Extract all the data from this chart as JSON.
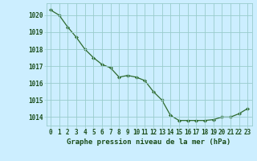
{
  "x": [
    0,
    1,
    2,
    3,
    4,
    5,
    6,
    7,
    8,
    9,
    10,
    11,
    12,
    13,
    14,
    15,
    16,
    17,
    18,
    19,
    20,
    21,
    22,
    23
  ],
  "y": [
    1020.3,
    1020.0,
    1019.3,
    1018.7,
    1018.0,
    1017.5,
    1017.1,
    1016.9,
    1016.35,
    1016.45,
    1016.35,
    1016.15,
    1015.5,
    1015.0,
    1014.1,
    1013.8,
    1013.8,
    1013.8,
    1013.8,
    1013.85,
    1014.0,
    1014.0,
    1014.2,
    1014.5
  ],
  "line_color": "#2d6a2d",
  "marker": "D",
  "marker_size": 2.2,
  "bg_color": "#cceeff",
  "grid_color": "#99cccc",
  "text_color": "#1a4d1a",
  "ylim": [
    1013.5,
    1020.7
  ],
  "yticks": [
    1014,
    1015,
    1016,
    1017,
    1018,
    1019,
    1020
  ],
  "xticks": [
    0,
    1,
    2,
    3,
    4,
    5,
    6,
    7,
    8,
    9,
    10,
    11,
    12,
    13,
    14,
    15,
    16,
    17,
    18,
    19,
    20,
    21,
    22,
    23
  ],
  "xlabel": "Graphe pression niveau de la mer (hPa)",
  "xlabel_fontsize": 6.5,
  "tick_fontsize": 5.5,
  "linewidth": 0.9
}
